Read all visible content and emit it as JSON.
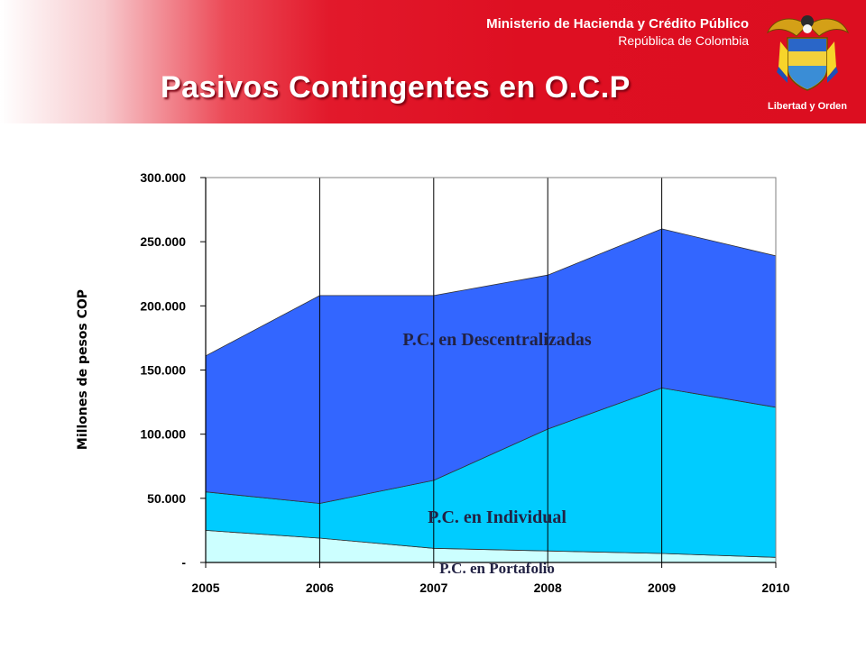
{
  "header": {
    "ministry": "Ministerio de Hacienda y Crédito Público",
    "country": "República de Colombia",
    "title": "Pasivos Contingentes en O.C.P",
    "motto": "Libertad y Orden"
  },
  "colors": {
    "header_red": "#dc0e20",
    "descentralizadas": "#3366ff",
    "individual": "#00ccff",
    "portafolio": "#ccffff"
  },
  "icons": {
    "crest": "colombia-coat-of-arms-icon"
  },
  "chart_data": {
    "type": "area",
    "stacked": true,
    "x": [
      "2005",
      "2006",
      "2007",
      "2008",
      "2009",
      "2010"
    ],
    "ylabel": "Millones de pesos COP",
    "ylim": [
      0,
      300000
    ],
    "yticks": [
      0,
      50000,
      100000,
      150000,
      200000,
      250000,
      300000
    ],
    "ytick_labels": [
      "-",
      "50.000",
      "100.000",
      "150.000",
      "200.000",
      "250.000",
      "300.000"
    ],
    "grid": "vertical",
    "series": [
      {
        "name": "P.C. en Portafolio",
        "values": [
          25000,
          19000,
          11000,
          9000,
          7000,
          4000
        ]
      },
      {
        "name": "P.C. en Individual",
        "values": [
          30000,
          27000,
          53000,
          95000,
          129000,
          117000
        ]
      },
      {
        "name": "P.C. en Descentralizadas",
        "values": [
          106000,
          162000,
          144000,
          120000,
          124000,
          118000
        ]
      }
    ]
  }
}
